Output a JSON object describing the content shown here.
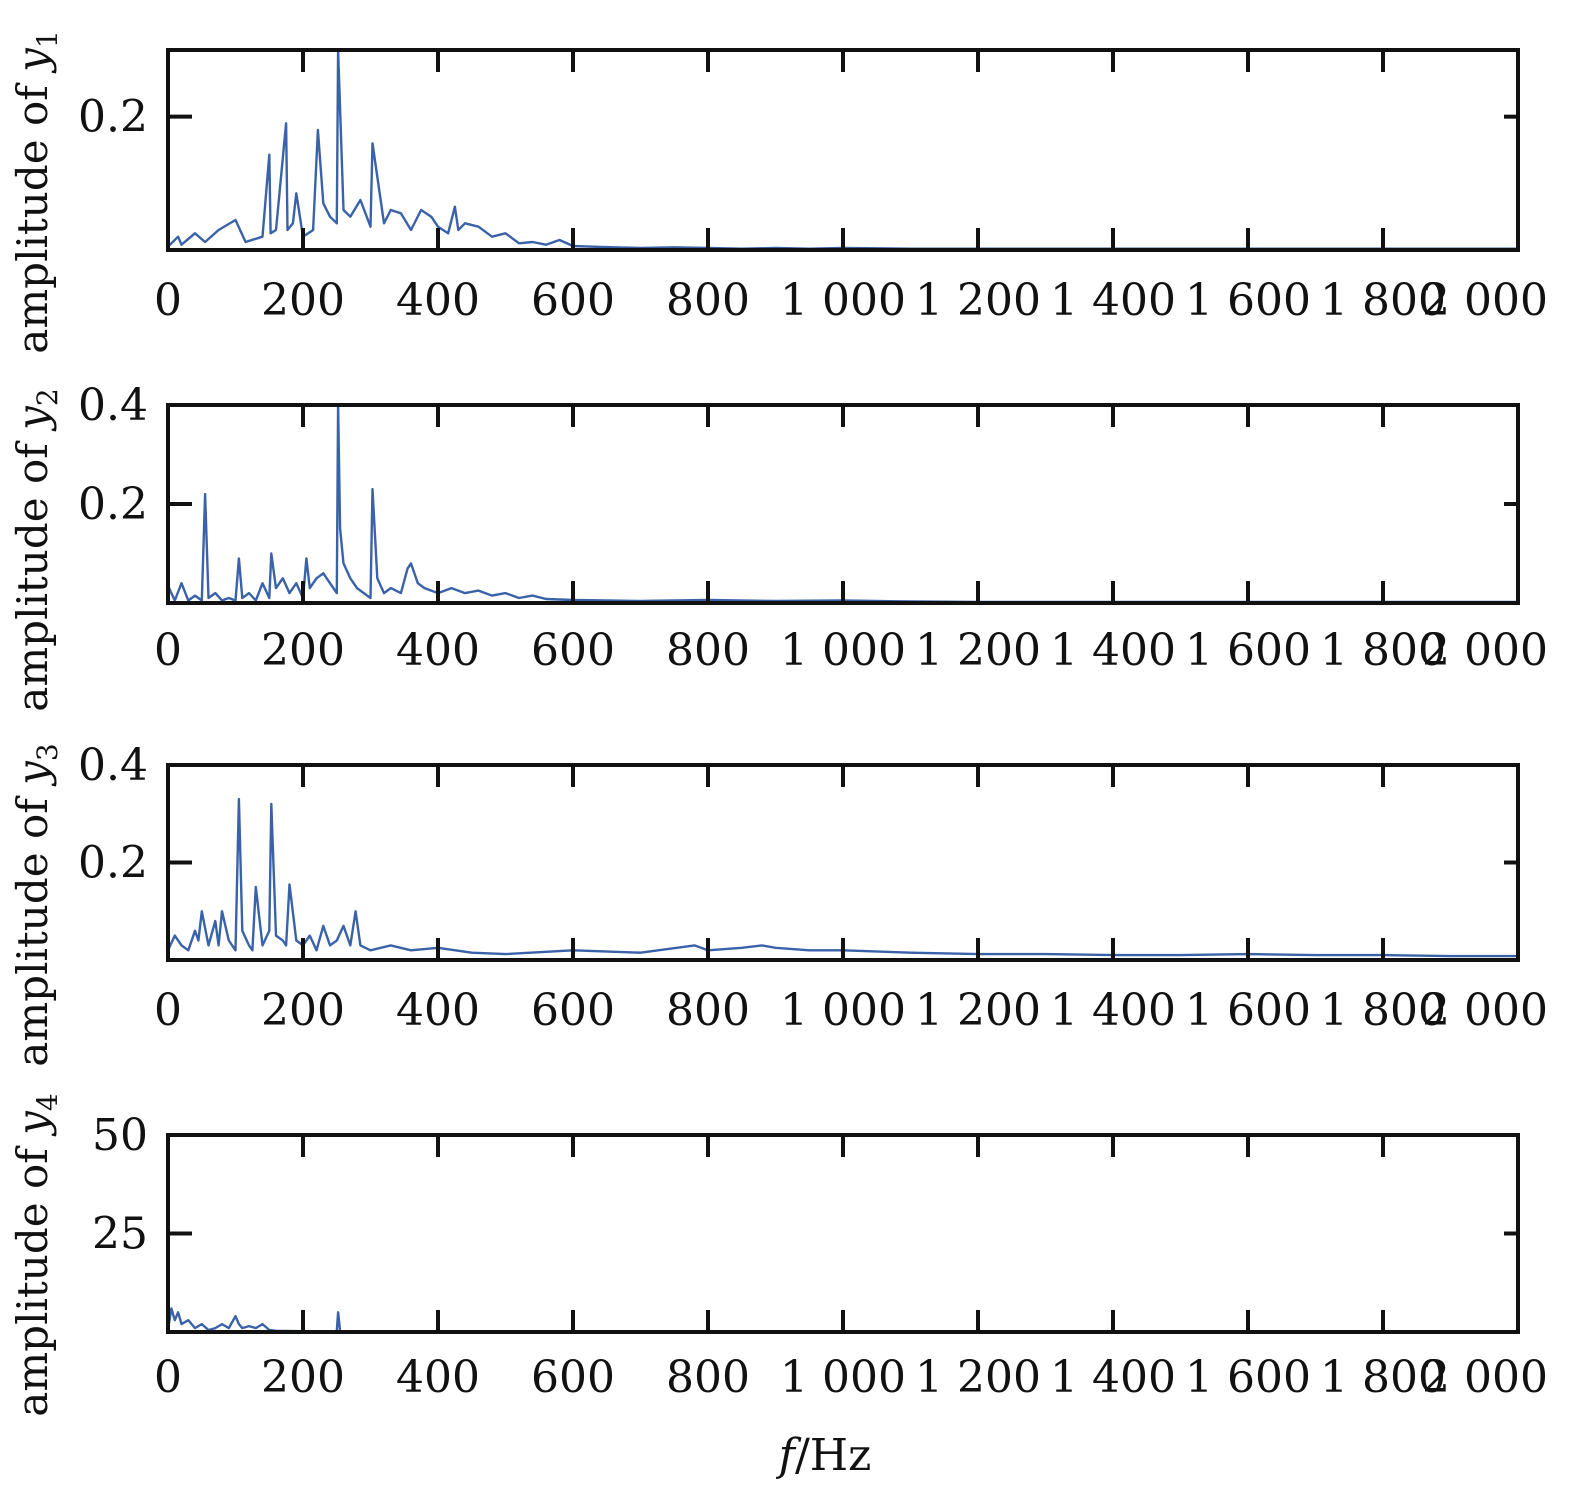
{
  "colors": {
    "series": "#3a62a8",
    "axes": "#111111"
  },
  "chart_data": [
    {
      "type": "line",
      "ylabel": "amplitude of y",
      "ylabel_sub": "1",
      "xlim": [
        0,
        2000
      ],
      "ylim": [
        0,
        0.3
      ],
      "xticks": [
        "0",
        "200",
        "400",
        "600",
        "800",
        "1 000",
        "1 200",
        "1 400",
        "1 600",
        "1 800",
        "2 000"
      ],
      "yticks": [
        {
          "v": 0.2,
          "label": "0.2"
        }
      ],
      "series": [
        {
          "x": [
            0,
            15,
            20,
            40,
            55,
            75,
            100,
            115,
            140,
            150,
            152,
            160,
            175,
            177,
            185,
            190,
            200,
            215,
            222,
            230,
            240,
            250,
            252,
            260,
            270,
            285,
            300,
            303,
            310,
            320,
            330,
            345,
            360,
            375,
            390,
            400,
            415,
            425,
            430,
            440,
            460,
            480,
            500,
            520,
            540,
            560,
            580,
            600,
            630,
            660,
            700,
            750,
            800,
            850,
            900,
            950,
            1000,
            1100,
            1200,
            1300,
            1400,
            1500,
            1600,
            1700,
            1800,
            1900,
            2000
          ],
          "y": [
            0.005,
            0.02,
            0.008,
            0.025,
            0.012,
            0.03,
            0.045,
            0.012,
            0.02,
            0.143,
            0.025,
            0.03,
            0.19,
            0.03,
            0.04,
            0.085,
            0.02,
            0.03,
            0.18,
            0.07,
            0.05,
            0.04,
            0.3,
            0.06,
            0.05,
            0.075,
            0.035,
            0.16,
            0.11,
            0.04,
            0.06,
            0.055,
            0.03,
            0.06,
            0.05,
            0.035,
            0.025,
            0.065,
            0.03,
            0.04,
            0.035,
            0.02,
            0.025,
            0.01,
            0.012,
            0.008,
            0.015,
            0.006,
            0.005,
            0.004,
            0.003,
            0.004,
            0.003,
            0.002,
            0.003,
            0.002,
            0.003,
            0.002,
            0.002,
            0.002,
            0.002,
            0.002,
            0.002,
            0.002,
            0.002,
            0.002,
            0.002
          ]
        }
      ]
    },
    {
      "type": "line",
      "ylabel": "amplitude of y",
      "ylabel_sub": "2",
      "xlim": [
        0,
        2000
      ],
      "ylim": [
        0,
        0.4
      ],
      "xticks": [
        "0",
        "200",
        "400",
        "600",
        "800",
        "1 000",
        "1 200",
        "1 400",
        "1 600",
        "1 800",
        "2 000"
      ],
      "yticks": [
        {
          "v": 0.2,
          "label": "0.2"
        },
        {
          "v": 0.4,
          "label": "0.4"
        }
      ],
      "series": [
        {
          "x": [
            0,
            10,
            20,
            30,
            40,
            50,
            55,
            60,
            70,
            80,
            90,
            100,
            105,
            110,
            120,
            130,
            140,
            150,
            153,
            160,
            170,
            180,
            190,
            200,
            205,
            210,
            220,
            230,
            240,
            250,
            252,
            255,
            260,
            270,
            280,
            290,
            300,
            303,
            310,
            320,
            330,
            345,
            355,
            360,
            370,
            380,
            400,
            420,
            440,
            460,
            480,
            500,
            520,
            540,
            560,
            600,
            650,
            700,
            800,
            900,
            1000,
            1100,
            1200,
            1300,
            1400,
            1600,
            1800,
            2000
          ],
          "y": [
            0.035,
            0.005,
            0.04,
            0.005,
            0.015,
            0.005,
            0.22,
            0.01,
            0.02,
            0.005,
            0.01,
            0.005,
            0.09,
            0.01,
            0.02,
            0.005,
            0.04,
            0.01,
            0.1,
            0.03,
            0.05,
            0.02,
            0.04,
            0.01,
            0.09,
            0.03,
            0.05,
            0.06,
            0.04,
            0.02,
            0.4,
            0.15,
            0.08,
            0.05,
            0.03,
            0.02,
            0.01,
            0.23,
            0.05,
            0.02,
            0.03,
            0.02,
            0.07,
            0.08,
            0.04,
            0.03,
            0.02,
            0.03,
            0.02,
            0.025,
            0.015,
            0.02,
            0.01,
            0.015,
            0.008,
            0.006,
            0.005,
            0.004,
            0.006,
            0.004,
            0.005,
            0.003,
            0.002,
            0.002,
            0.002,
            0.002,
            0.002,
            0.002
          ]
        }
      ]
    },
    {
      "type": "line",
      "ylabel": "amplitude of y",
      "ylabel_sub": "3",
      "xlim": [
        0,
        2000
      ],
      "ylim": [
        0,
        0.4
      ],
      "xticks": [
        "0",
        "200",
        "400",
        "600",
        "800",
        "1 000",
        "1 200",
        "1 400",
        "1 600",
        "1 800",
        "2 000"
      ],
      "yticks": [
        {
          "v": 0.2,
          "label": "0.2"
        },
        {
          "v": 0.4,
          "label": "0.4"
        }
      ],
      "series": [
        {
          "x": [
            0,
            10,
            20,
            30,
            40,
            45,
            50,
            60,
            70,
            75,
            80,
            90,
            100,
            105,
            110,
            120,
            125,
            130,
            140,
            150,
            153,
            160,
            170,
            175,
            180,
            190,
            200,
            210,
            220,
            230,
            240,
            250,
            260,
            270,
            278,
            285,
            300,
            330,
            360,
            400,
            450,
            500,
            600,
            700,
            780,
            800,
            850,
            880,
            900,
            950,
            1000,
            1100,
            1200,
            1300,
            1400,
            1500,
            1600,
            1700,
            1800,
            1900,
            2000
          ],
          "y": [
            0.02,
            0.05,
            0.03,
            0.02,
            0.06,
            0.04,
            0.1,
            0.03,
            0.08,
            0.03,
            0.1,
            0.04,
            0.02,
            0.33,
            0.06,
            0.03,
            0.02,
            0.15,
            0.03,
            0.06,
            0.32,
            0.05,
            0.04,
            0.03,
            0.155,
            0.04,
            0.03,
            0.05,
            0.02,
            0.07,
            0.03,
            0.04,
            0.07,
            0.03,
            0.1,
            0.03,
            0.02,
            0.03,
            0.02,
            0.025,
            0.015,
            0.012,
            0.02,
            0.015,
            0.03,
            0.02,
            0.025,
            0.03,
            0.025,
            0.02,
            0.02,
            0.015,
            0.012,
            0.012,
            0.01,
            0.01,
            0.012,
            0.01,
            0.01,
            0.008,
            0.008
          ]
        }
      ]
    },
    {
      "type": "line",
      "ylabel": "amplitude of y",
      "ylabel_sub": "4",
      "xlim": [
        0,
        2000
      ],
      "ylim": [
        0,
        50
      ],
      "xticks": [
        "0",
        "200",
        "400",
        "600",
        "800",
        "1 000",
        "1 200",
        "1 400",
        "1 600",
        "1 800",
        "2 000"
      ],
      "yticks": [
        {
          "v": 25,
          "label": "25"
        },
        {
          "v": 50,
          "label": "50"
        }
      ],
      "series": [
        {
          "x": [
            0,
            5,
            10,
            15,
            20,
            30,
            40,
            50,
            60,
            70,
            80,
            90,
            100,
            105,
            110,
            120,
            130,
            140,
            150,
            160,
            200,
            250,
            252,
            255,
            300,
            400,
            500,
            600,
            800,
            1000,
            1200,
            1400,
            1600,
            1800,
            2000
          ],
          "y": [
            0.5,
            6,
            3,
            5,
            2,
            3,
            1,
            2,
            0.5,
            1,
            2,
            1,
            4,
            2,
            1,
            1.5,
            1,
            2,
            0.5,
            0.3,
            0.2,
            0.2,
            5,
            0.2,
            0.1,
            0.1,
            0.1,
            0.1,
            0.1,
            0.1,
            0.1,
            0.1,
            0.1,
            0.1,
            0.1
          ]
        }
      ]
    }
  ],
  "xlabel": {
    "var": "f",
    "unit": "/Hz"
  }
}
